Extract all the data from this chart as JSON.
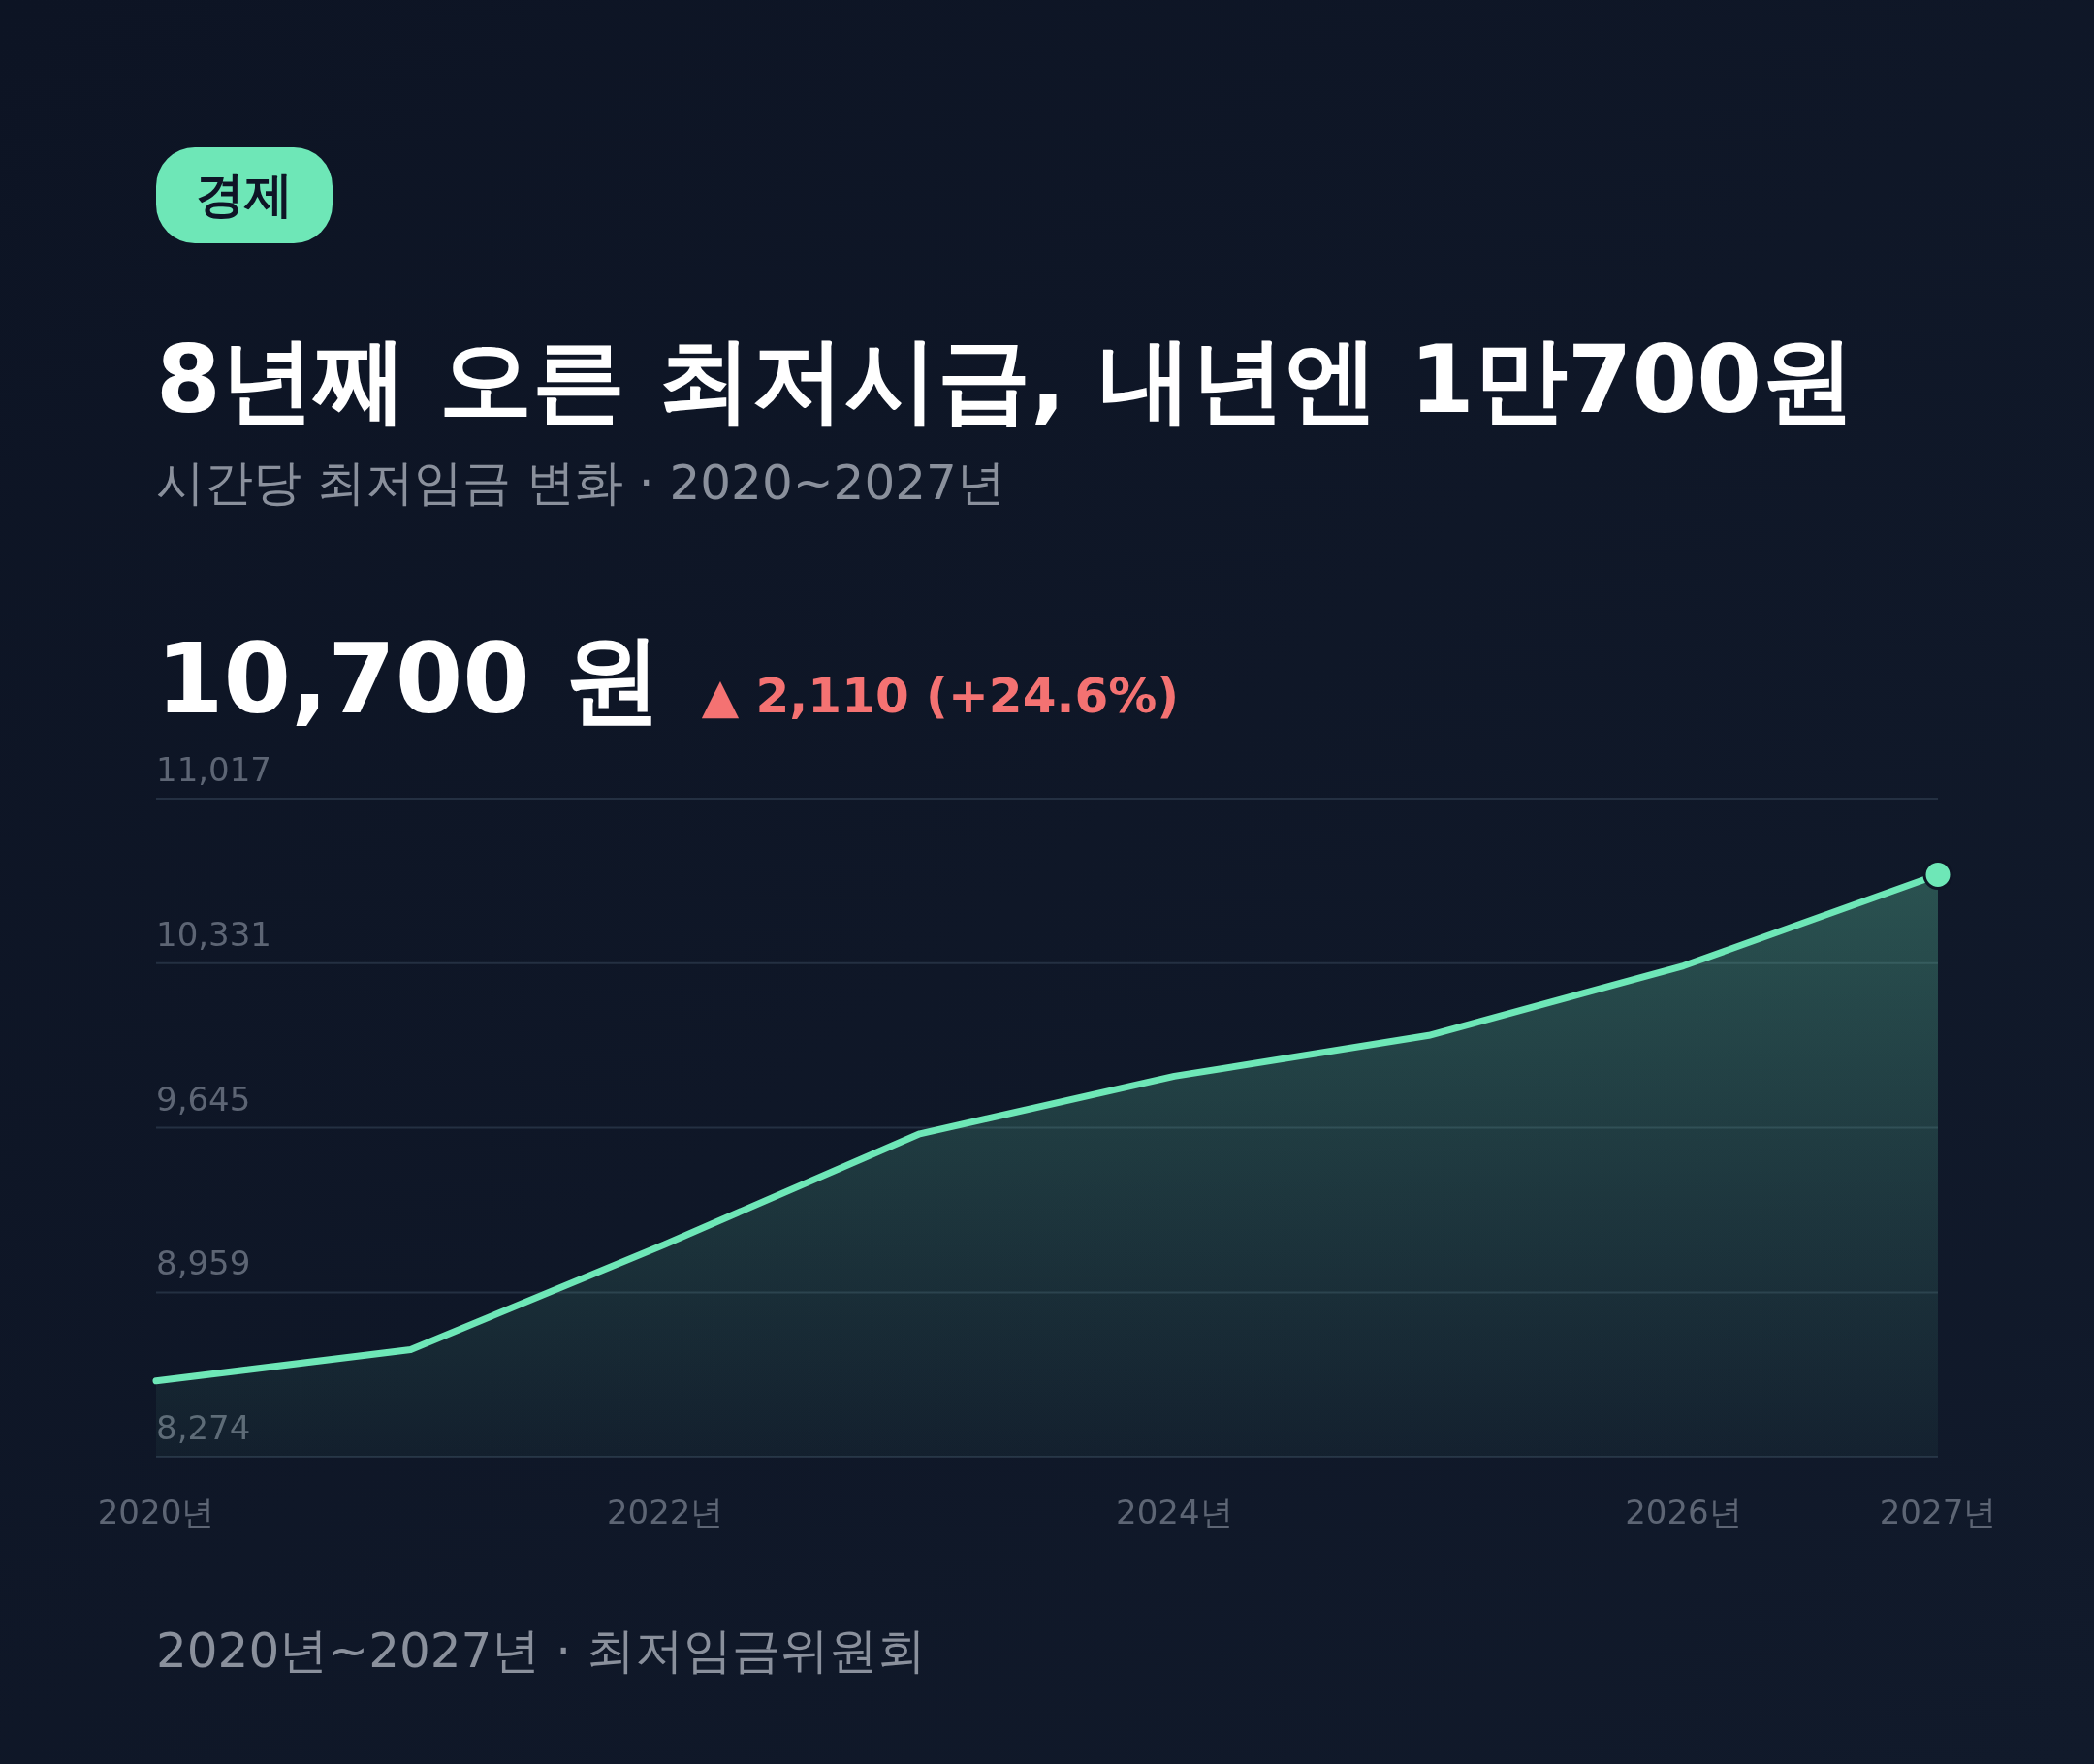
{
  "chart_data": {
    "type": "area",
    "title": "8년째 오른 최저시급, 내년엔 1만700원",
    "subtitle": "시간당 최저임금 변화 · 2020~2027년",
    "x": [
      2020,
      2021,
      2022,
      2023,
      2024,
      2025,
      2026,
      2027
    ],
    "series": [
      {
        "color": "#6ee7b7",
        "values": [
          8590,
          8720,
          9160,
          9620,
          9860,
          10030,
          10320,
          10700
        ]
      },
      {
        "type": "scatter",
        "color": "#6ee7b7",
        "marker": "circle",
        "x": [
          2027
        ],
        "values": [
          10700
        ]
      }
    ],
    "xlim": [
      2020,
      2027
    ],
    "xticks": [
      {
        "value": 2020,
        "label": "2020년"
      },
      {
        "value": 2022,
        "label": "2022년"
      },
      {
        "value": 2024,
        "label": "2024년"
      },
      {
        "value": 2026,
        "label": "2026년"
      },
      {
        "value": 2027,
        "label": "2027년"
      }
    ],
    "ylim": [
      8274,
      11017
    ],
    "yticks": [
      {
        "value": 8274,
        "label": "8,274"
      },
      {
        "value": 8959,
        "label": "8,959"
      },
      {
        "value": 9645,
        "label": "9,645"
      },
      {
        "value": 10331,
        "label": "10,331"
      },
      {
        "value": 11017,
        "label": "11,017"
      }
    ],
    "grid": "y",
    "annotations": [
      "경제",
      "10,700 원",
      "▲ 2,110 (+24.6%)",
      "2020년~2027년 · 최저임금위원회"
    ]
  }
}
